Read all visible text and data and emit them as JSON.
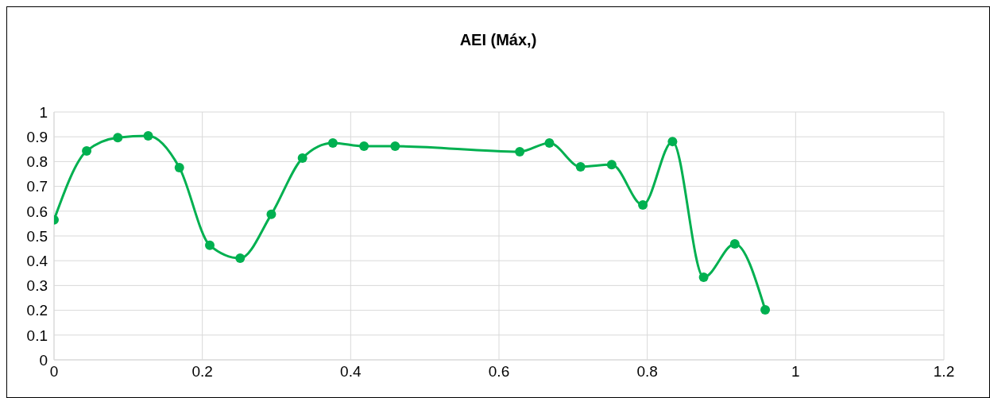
{
  "chart_data": {
    "type": "line",
    "title": "AEI (Máx,)",
    "x": [
      0,
      0.044,
      0.086,
      0.127,
      0.169,
      0.21,
      0.251,
      0.293,
      0.335,
      0.376,
      0.418,
      0.46,
      0.628,
      0.668,
      0.71,
      0.752,
      0.794,
      0.834,
      0.876,
      0.918,
      0.959
    ],
    "series": [
      {
        "color": "#00b050",
        "values": [
          0.565,
          0.843,
          0.897,
          0.904,
          0.776,
          0.462,
          0.41,
          0.587,
          0.814,
          0.875,
          0.862,
          0.862,
          0.84,
          0.875,
          0.779,
          0.788,
          0.625,
          0.881,
          0.333,
          0.468,
          0.202
        ]
      }
    ],
    "xlim": [
      0,
      1.2
    ],
    "xticks": [
      0,
      0.2,
      0.4,
      0.6,
      0.8,
      1,
      1.2
    ],
    "ylim": [
      0,
      1
    ],
    "yticks": [
      0,
      0.1,
      0.2,
      0.3,
      0.4,
      0.5,
      0.6,
      0.7,
      0.8,
      0.9,
      1
    ],
    "grid": true,
    "marker": "circle",
    "line_style": "solid"
  }
}
